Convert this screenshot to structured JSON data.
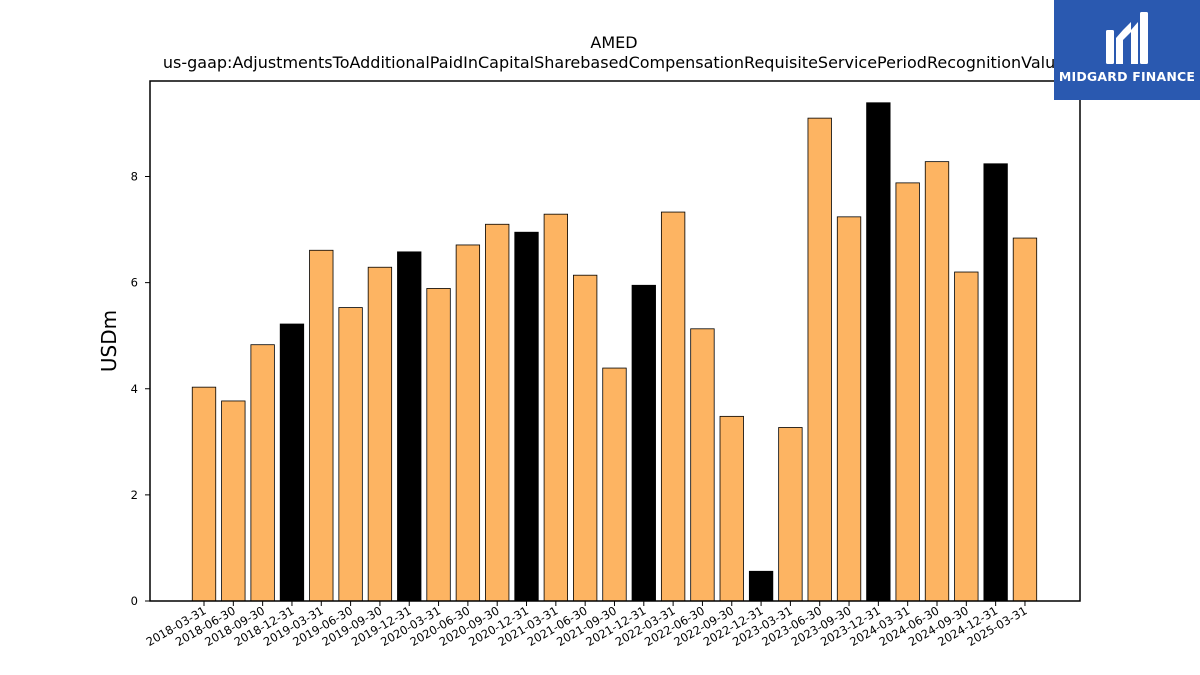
{
  "chart_data": {
    "type": "bar",
    "title": "AMED",
    "subtitle": "us-gaap:AdjustmentsToAdditionalPaidInCapitalSharebasedCompensationRequisiteServicePeriodRecognitionValue",
    "xlabel": "",
    "ylabel": "USDm",
    "ylim": [
      0,
      9.8
    ],
    "yticks": [
      0,
      2,
      4,
      6,
      8
    ],
    "grid": false,
    "legend": "none",
    "categories": [
      "2018-03-31",
      "2018-06-30",
      "2018-09-30",
      "2018-12-31",
      "2019-03-31",
      "2019-06-30",
      "2019-09-30",
      "2019-12-31",
      "2020-03-31",
      "2020-06-30",
      "2020-09-30",
      "2020-12-31",
      "2021-03-31",
      "2021-06-30",
      "2021-09-30",
      "2021-12-31",
      "2022-03-31",
      "2022-06-30",
      "2022-09-30",
      "2022-12-31",
      "2023-03-31",
      "2023-06-30",
      "2023-09-30",
      "2023-12-31",
      "2024-03-31",
      "2024-06-30",
      "2024-09-30",
      "2024-12-31",
      "2025-03-31"
    ],
    "values": [
      4.03,
      3.77,
      4.83,
      5.22,
      6.61,
      5.53,
      6.29,
      6.58,
      5.89,
      6.71,
      7.1,
      6.95,
      7.29,
      6.14,
      4.39,
      5.95,
      7.33,
      5.13,
      3.48,
      0.56,
      3.27,
      9.1,
      7.24,
      9.39,
      7.88,
      8.28,
      6.2,
      8.24,
      6.84
    ],
    "colors": {
      "quarter": "#fdb462",
      "year_end": "#000000",
      "edge": "#000000"
    }
  },
  "logo": {
    "text": "MIDGARD FINANCE",
    "bg": "#2a59b0"
  }
}
